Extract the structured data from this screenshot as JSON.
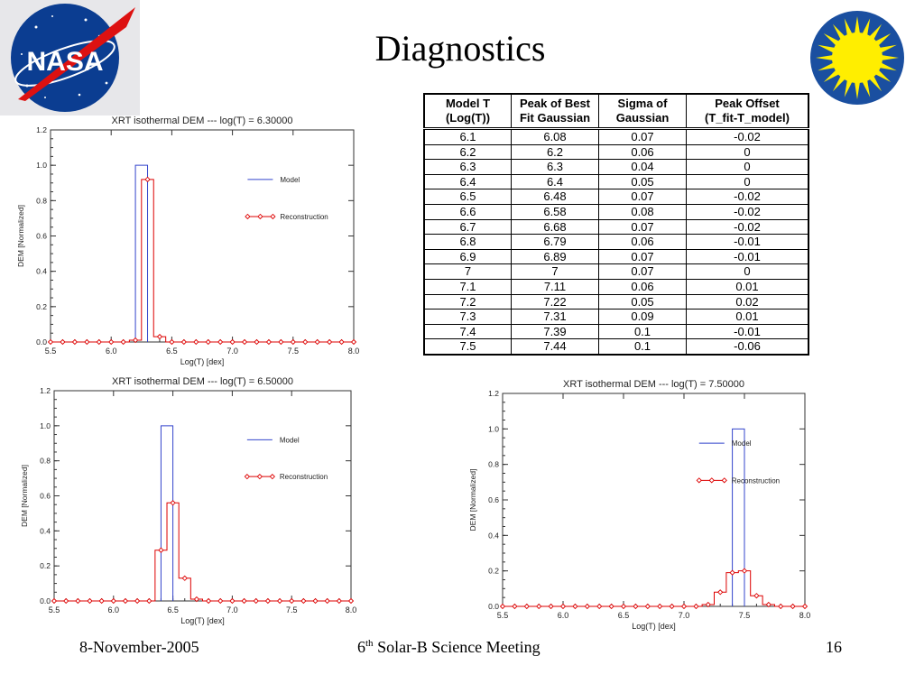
{
  "title": "Diagnostics",
  "logos": {
    "left": {
      "text": "NASA",
      "icon": "nasa-meatball-logo"
    },
    "right": {
      "icon": "yellow-sun-emblem"
    }
  },
  "table": {
    "headers": [
      [
        "Model T",
        "(Log(T))"
      ],
      [
        "Peak of Best",
        "Fit Gaussian"
      ],
      [
        "Sigma of",
        "Gaussian"
      ],
      [
        "Peak Offset",
        "(T_fit-T_model)"
      ]
    ],
    "rows": [
      [
        "6.1",
        "6.08",
        "0.07",
        "-0.02"
      ],
      [
        "6.2",
        "6.2",
        "0.06",
        "0"
      ],
      [
        "6.3",
        "6.3",
        "0.04",
        "0"
      ],
      [
        "6.4",
        "6.4",
        "0.05",
        "0"
      ],
      [
        "6.5",
        "6.48",
        "0.07",
        "-0.02"
      ],
      [
        "6.6",
        "6.58",
        "0.08",
        "-0.02"
      ],
      [
        "6.7",
        "6.68",
        "0.07",
        "-0.02"
      ],
      [
        "6.8",
        "6.79",
        "0.06",
        "-0.01"
      ],
      [
        "6.9",
        "6.89",
        "0.07",
        "-0.01"
      ],
      [
        "7",
        "7",
        "0.07",
        "0"
      ],
      [
        "7.1",
        "7.11",
        "0.06",
        "0.01"
      ],
      [
        "7.2",
        "7.22",
        "0.05",
        "0.02"
      ],
      [
        "7.3",
        "7.31",
        "0.09",
        "0.01"
      ],
      [
        "7.4",
        "7.39",
        "0.1",
        "-0.01"
      ],
      [
        "7.5",
        "7.44",
        "0.1",
        "-0.06"
      ]
    ]
  },
  "chart_data": [
    {
      "type": "line",
      "title": "XRT isothermal DEM --- log(T) = 6.30000",
      "xlabel": "Log(T) [dex]",
      "ylabel": "DEM [Normalized]",
      "xlim": [
        5.5,
        8.0
      ],
      "ylim": [
        0.0,
        1.2
      ],
      "xticks": [
        "5.5",
        "6.0",
        "6.5",
        "7.0",
        "7.5",
        "8.0"
      ],
      "yticks": [
        "0.0",
        "0.2",
        "0.4",
        "0.6",
        "0.8",
        "1.0",
        "1.2"
      ],
      "legend_position": "right",
      "series": [
        {
          "name": "Model",
          "color": "#3344cc",
          "style": "histogram",
          "x": [
            6.25
          ],
          "values": [
            1.0
          ]
        },
        {
          "name": "Reconstruction",
          "color": "#dd0000",
          "style": "histogram-diamond",
          "x": [
            5.5,
            5.6,
            5.7,
            5.8,
            5.9,
            6.0,
            6.1,
            6.2,
            6.3,
            6.4,
            6.5,
            6.6,
            6.7,
            6.8,
            6.9,
            7.0,
            7.1,
            7.2,
            7.3,
            7.4,
            7.5,
            7.6,
            7.7,
            7.8,
            7.9,
            8.0
          ],
          "values": [
            0,
            0,
            0,
            0,
            0,
            0,
            0,
            0.01,
            0.92,
            0.03,
            0,
            0,
            0,
            0,
            0,
            0,
            0,
            0,
            0,
            0,
            0,
            0,
            0,
            0,
            0,
            0
          ]
        }
      ]
    },
    {
      "type": "line",
      "title": "XRT isothermal DEM --- log(T) = 6.50000",
      "xlabel": "Log(T) [dex]",
      "ylabel": "DEM [Normalized]",
      "xlim": [
        5.5,
        8.0
      ],
      "ylim": [
        0.0,
        1.2
      ],
      "xticks": [
        "5.5",
        "6.0",
        "6.5",
        "7.0",
        "7.5",
        "8.0"
      ],
      "yticks": [
        "0.0",
        "0.2",
        "0.4",
        "0.6",
        "0.8",
        "1.0",
        "1.2"
      ],
      "legend_position": "right",
      "series": [
        {
          "name": "Model",
          "color": "#3344cc",
          "style": "histogram",
          "x": [
            6.45
          ],
          "values": [
            1.0
          ]
        },
        {
          "name": "Reconstruction",
          "color": "#dd0000",
          "style": "histogram-diamond",
          "x": [
            5.5,
            5.6,
            5.7,
            5.8,
            5.9,
            6.0,
            6.1,
            6.2,
            6.3,
            6.4,
            6.5,
            6.6,
            6.7,
            6.8,
            6.9,
            7.0,
            7.1,
            7.2,
            7.3,
            7.4,
            7.5,
            7.6,
            7.7,
            7.8,
            7.9,
            8.0
          ],
          "values": [
            0,
            0,
            0,
            0,
            0,
            0,
            0,
            0,
            0,
            0.29,
            0.56,
            0.13,
            0.01,
            0,
            0,
            0,
            0,
            0,
            0,
            0,
            0,
            0,
            0,
            0,
            0,
            0
          ]
        }
      ]
    },
    {
      "type": "line",
      "title": "XRT isothermal DEM --- log(T) = 7.50000",
      "xlabel": "Log(T) [dex]",
      "ylabel": "DEM [Normalized]",
      "xlim": [
        5.5,
        8.0
      ],
      "ylim": [
        0.0,
        1.2
      ],
      "xticks": [
        "5.5",
        "6.0",
        "6.5",
        "7.0",
        "7.5",
        "8.0"
      ],
      "yticks": [
        "0.0",
        "0.2",
        "0.4",
        "0.6",
        "0.8",
        "1.0",
        "1.2"
      ],
      "legend_position": "right",
      "series": [
        {
          "name": "Model",
          "color": "#3344cc",
          "style": "histogram",
          "x": [
            7.45
          ],
          "values": [
            1.0
          ]
        },
        {
          "name": "Reconstruction",
          "color": "#dd0000",
          "style": "histogram-diamond",
          "x": [
            5.5,
            5.6,
            5.7,
            5.8,
            5.9,
            6.0,
            6.1,
            6.2,
            6.3,
            6.4,
            6.5,
            6.6,
            6.7,
            6.8,
            6.9,
            7.0,
            7.1,
            7.2,
            7.3,
            7.4,
            7.5,
            7.6,
            7.7,
            7.8,
            7.9,
            8.0
          ],
          "values": [
            0,
            0,
            0,
            0,
            0,
            0,
            0,
            0,
            0,
            0,
            0,
            0,
            0,
            0,
            0,
            0,
            0,
            0.01,
            0.08,
            0.19,
            0.2,
            0.06,
            0.01,
            0,
            0,
            0
          ]
        }
      ]
    }
  ],
  "footer": {
    "date": "8-November-2005",
    "meeting_num": "6",
    "meeting_sup": "th",
    "meeting_text": " Solar-B Science Meeting",
    "page": "16"
  }
}
